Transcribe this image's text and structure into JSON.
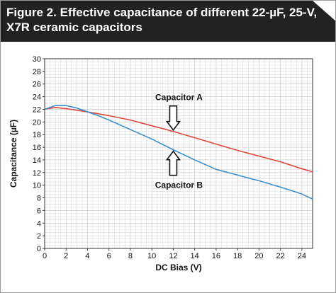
{
  "figure": {
    "title": "Figure 2. Effective capacitance of different 22-µF, 25-V, X7R ceramic capacitors"
  },
  "colors": {
    "header_bg": "#222222",
    "header_text": "#ffffff",
    "series_a": "#e0483a",
    "series_b": "#3a8fd0",
    "grid_minor": "#dcdcdc",
    "grid_major": "#c4c4c4"
  },
  "chart_data": {
    "type": "line",
    "title": "Figure 2. Effective capacitance of different 22-µF, 25-V, X7R ceramic capacitors",
    "xlabel": "DC Bias (V)",
    "ylabel": "Capacitance (µF)",
    "xlim": [
      0,
      25
    ],
    "ylim": [
      0,
      30
    ],
    "x_ticks": [
      0,
      2,
      4,
      6,
      8,
      10,
      12,
      14,
      16,
      18,
      20,
      22,
      24
    ],
    "y_ticks": [
      0,
      2,
      4,
      6,
      8,
      10,
      12,
      14,
      16,
      18,
      20,
      22,
      24,
      26,
      28,
      30
    ],
    "grid": true,
    "series": [
      {
        "name": "Capacitor A",
        "color": "#e0483a",
        "points": [
          [
            0,
            22
          ],
          [
            1,
            22.3
          ],
          [
            2,
            22.1
          ],
          [
            4,
            21.6
          ],
          [
            6,
            21.0
          ],
          [
            8,
            20.3
          ],
          [
            10,
            19.4
          ],
          [
            12,
            18.5
          ],
          [
            14,
            17.5
          ],
          [
            16,
            16.5
          ],
          [
            18,
            15.5
          ],
          [
            20,
            14.6
          ],
          [
            22,
            13.7
          ],
          [
            24,
            12.6
          ],
          [
            25,
            12.1
          ]
        ]
      },
      {
        "name": "Capacitor B",
        "color": "#3a8fd0",
        "points": [
          [
            0,
            22
          ],
          [
            0.5,
            22.3
          ],
          [
            1,
            22.6
          ],
          [
            2,
            22.6
          ],
          [
            3,
            22.2
          ],
          [
            4,
            21.6
          ],
          [
            5,
            21.0
          ],
          [
            6,
            20.3
          ],
          [
            8,
            18.8
          ],
          [
            10,
            17.3
          ],
          [
            12,
            15.6
          ],
          [
            14,
            14.0
          ],
          [
            16,
            12.5
          ],
          [
            18,
            11.6
          ],
          [
            20,
            10.7
          ],
          [
            22,
            9.7
          ],
          [
            24,
            8.6
          ],
          [
            25,
            7.8
          ]
        ]
      }
    ],
    "annotations": [
      {
        "text": "Capacitor A",
        "x": 12,
        "y": 18.5,
        "arrow": "down",
        "text_position": "above"
      },
      {
        "text": "Capacitor B",
        "x": 12,
        "y": 15.6,
        "arrow": "up",
        "text_position": "below"
      }
    ]
  }
}
